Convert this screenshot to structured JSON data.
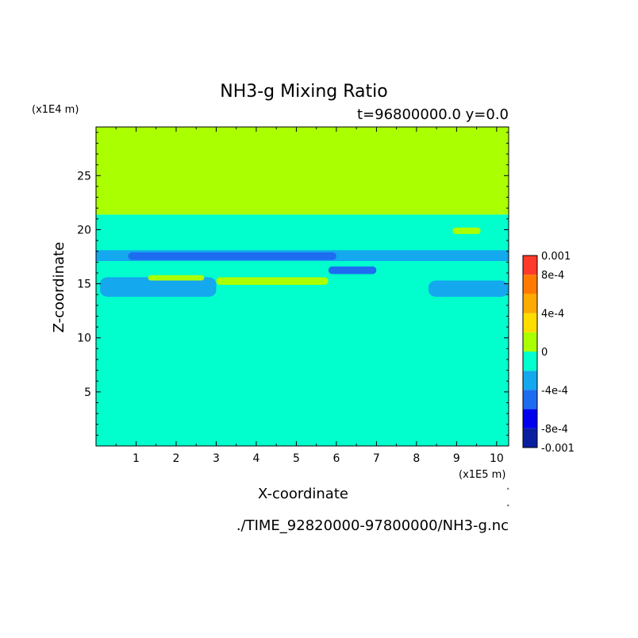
{
  "chart_data": {
    "type": "heatmap",
    "title": "NH3-g Mixing Ratio",
    "subtitle": "t=96800000.0 y=0.0",
    "xlabel": "X-coordinate",
    "ylabel": "Z-coordinate",
    "x_unit_label": "(x1E5 m)",
    "y_unit_label": "(x1E4 m)",
    "source_file": "./TIME_92820000-97800000/NH3-g.nc",
    "xlim": [
      0,
      10.3
    ],
    "ylim": [
      0,
      29.5
    ],
    "x_ticks": [
      "1",
      "2",
      "3",
      "4",
      "5",
      "6",
      "7",
      "8",
      "9",
      "10"
    ],
    "y_ticks": [
      "5",
      "10",
      "15",
      "20",
      "25"
    ],
    "x_tick_values": [
      1,
      2,
      3,
      4,
      5,
      6,
      7,
      8,
      9,
      10
    ],
    "y_tick_values": [
      5,
      10,
      15,
      20,
      25
    ],
    "colorbar": {
      "min": -0.001,
      "max": 0.001,
      "labels": [
        "0.001",
        "8e-4",
        "4e-4",
        "0",
        "-4e-4",
        "-8e-4",
        "-0.001"
      ],
      "label_values": [
        0.001,
        0.0008,
        0.0004,
        0,
        -0.0004,
        -0.0008,
        -0.001
      ],
      "levels": [
        {
          "from": -0.001,
          "to": -0.0008,
          "color": "#0a1fa0"
        },
        {
          "from": -0.0008,
          "to": -0.0006,
          "color": "#0000ee"
        },
        {
          "from": -0.0006,
          "to": -0.0004,
          "color": "#1e6cf0"
        },
        {
          "from": -0.0004,
          "to": -0.0002,
          "color": "#14a8ee"
        },
        {
          "from": -0.0002,
          "to": 0,
          "color": "#00ffcc"
        },
        {
          "from": 0,
          "to": 0.0002,
          "color": "#aaff00"
        },
        {
          "from": 0.0002,
          "to": 0.0004,
          "color": "#ffdd00"
        },
        {
          "from": 0.0004,
          "to": 0.0006,
          "color": "#ffaa00"
        },
        {
          "from": 0.0006,
          "to": 0.0008,
          "color": "#ff7a00"
        },
        {
          "from": 0.0008,
          "to": 0.001,
          "color": "#ff3a2a"
        }
      ]
    },
    "regions": [
      {
        "desc": "background",
        "value": -0.0001,
        "x": [
          0,
          10.3
        ],
        "y": [
          0,
          21.4
        ]
      },
      {
        "desc": "upper layer",
        "value": 0.0001,
        "x": [
          0,
          10.3
        ],
        "y": [
          21.4,
          29.5
        ]
      },
      {
        "desc": "band 17-18",
        "value": -0.0003,
        "x": [
          0,
          10.3
        ],
        "y": [
          17.1,
          18.1
        ]
      },
      {
        "desc": "deep core",
        "value": -0.0005,
        "x": [
          0.8,
          6.0
        ],
        "y": [
          17.2,
          17.9
        ]
      },
      {
        "desc": "east patch",
        "value": -0.0005,
        "x": [
          5.8,
          7.0
        ],
        "y": [
          15.9,
          16.6
        ]
      },
      {
        "desc": "lower band",
        "value": -0.0003,
        "x": [
          0.1,
          3.0
        ],
        "y": [
          13.8,
          15.6
        ]
      },
      {
        "desc": "right lower band",
        "value": -0.0003,
        "x": [
          8.3,
          10.3
        ],
        "y": [
          13.8,
          15.3
        ]
      },
      {
        "desc": "yellow streak 1",
        "value": 0.0001,
        "x": [
          1.3,
          2.7
        ],
        "y": [
          15.3,
          15.8
        ]
      },
      {
        "desc": "yellow streak 2",
        "value": 0.0001,
        "x": [
          3.0,
          5.8
        ],
        "y": [
          14.9,
          15.6
        ]
      },
      {
        "desc": "small spots",
        "value": 0.0001,
        "x": [
          8.9,
          9.6
        ],
        "y": [
          19.6,
          20.2
        ]
      }
    ]
  }
}
